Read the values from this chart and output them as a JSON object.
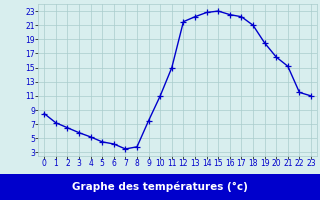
{
  "hours": [
    0,
    1,
    2,
    3,
    4,
    5,
    6,
    7,
    8,
    9,
    10,
    11,
    12,
    13,
    14,
    15,
    16,
    17,
    18,
    19,
    20,
    21,
    22,
    23
  ],
  "temperatures": [
    8.5,
    7.2,
    6.5,
    5.8,
    5.2,
    4.5,
    4.2,
    3.5,
    3.8,
    7.5,
    11.0,
    15.0,
    21.5,
    22.2,
    22.8,
    23.0,
    22.5,
    22.2,
    21.0,
    18.5,
    16.5,
    15.2,
    11.5,
    11.0
  ],
  "line_color": "#0000cc",
  "marker": "+",
  "markersize": 4,
  "linewidth": 1.0,
  "background_color": "#d8eeee",
  "grid_color": "#aacccc",
  "xlabel": "Graphe des températures (°c)",
  "xlabel_color": "#ffffff",
  "xlabel_bg": "#0000cc",
  "ylim": [
    2.5,
    24
  ],
  "xlim": [
    -0.5,
    23.5
  ],
  "yticks": [
    3,
    5,
    7,
    9,
    11,
    13,
    15,
    17,
    19,
    21,
    23
  ],
  "xticks": [
    0,
    1,
    2,
    3,
    4,
    5,
    6,
    7,
    8,
    9,
    10,
    11,
    12,
    13,
    14,
    15,
    16,
    17,
    18,
    19,
    20,
    21,
    22,
    23
  ],
  "tick_label_color": "#0000cc",
  "tick_label_fontsize": 5.5,
  "xlabel_fontsize": 7.5
}
